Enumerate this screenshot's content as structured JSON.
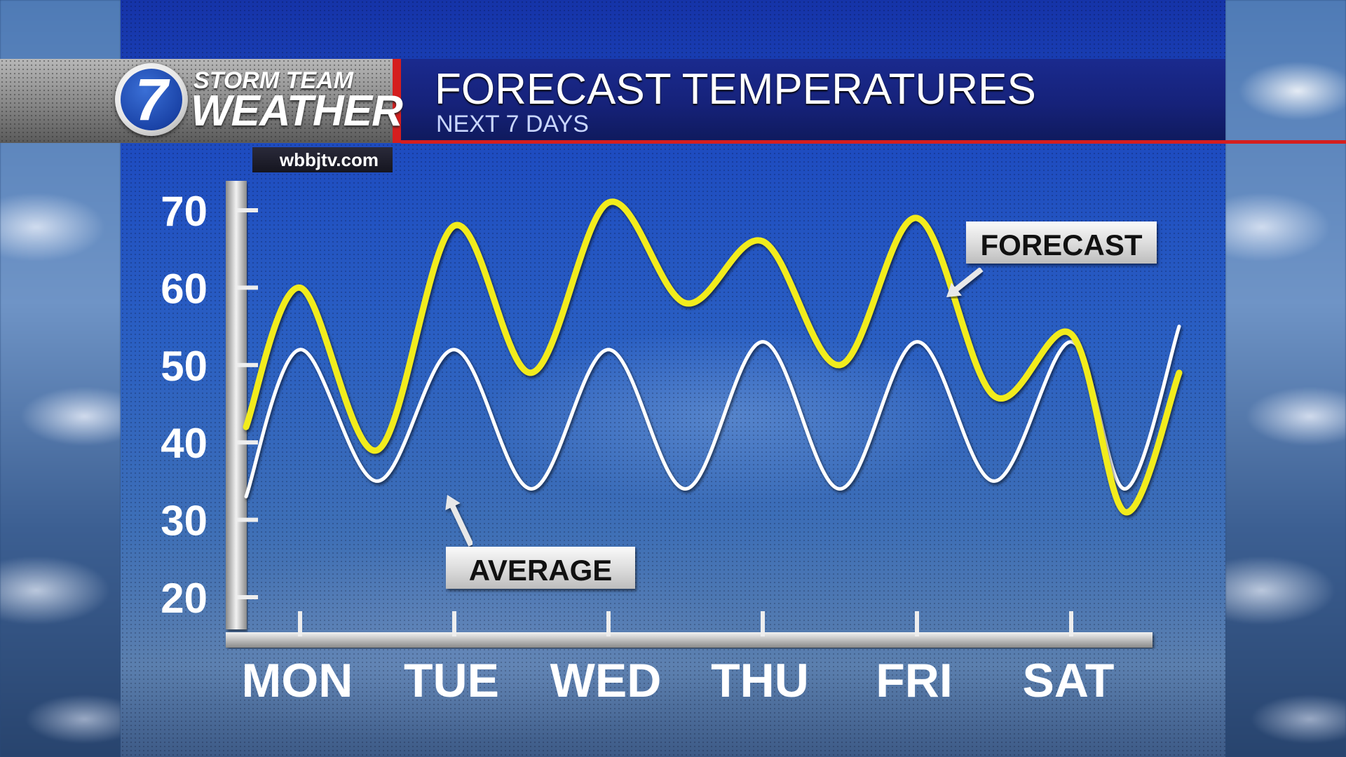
{
  "header": {
    "logo_number": "7",
    "brand_line1": "STORM TEAM",
    "brand_line2": "WEATHER",
    "title": "FORECAST TEMPERATURES",
    "subtitle": "NEXT 7 DAYS",
    "website": "wbbjtv.com"
  },
  "colors": {
    "forecast_line": "#f2ec1a",
    "average_line": "#ffffff",
    "header_red": "#d51e1e",
    "header_blue": "#16227a"
  },
  "labels": {
    "forecast": "FORECAST",
    "average": "AVERAGE"
  },
  "chart_data": {
    "type": "line",
    "title": "FORECAST TEMPERATURES",
    "subtitle": "NEXT 7 DAYS",
    "xlabel": "",
    "ylabel": "",
    "ylim": [
      20,
      70
    ],
    "y_ticks": [
      70,
      60,
      50,
      40,
      30,
      20
    ],
    "categories": [
      "MON",
      "TUE",
      "WED",
      "THU",
      "FRI",
      "SAT"
    ],
    "legend": "annotations",
    "grid": false,
    "series": [
      {
        "name": "FORECAST",
        "color": "#f2ec1a",
        "x": [
          -0.35,
          0.0,
          0.5,
          1.0,
          1.5,
          2.0,
          2.5,
          3.0,
          3.5,
          4.0,
          4.5,
          5.0,
          5.35,
          5.7
        ],
        "y": [
          42,
          60,
          39,
          68,
          49,
          71,
          58,
          66,
          50,
          69,
          46,
          54,
          31,
          49
        ]
      },
      {
        "name": "AVERAGE",
        "color": "#ffffff",
        "x": [
          -0.35,
          0.0,
          0.5,
          1.0,
          1.5,
          2.0,
          2.5,
          3.0,
          3.5,
          4.0,
          4.5,
          5.0,
          5.35,
          5.7
        ],
        "y": [
          33,
          52,
          35,
          52,
          34,
          52,
          34,
          53,
          34,
          53,
          35,
          53,
          34,
          55
        ]
      }
    ]
  }
}
